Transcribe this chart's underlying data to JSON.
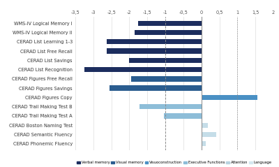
{
  "categories": [
    "WMS-IV Logical Memory I",
    "WMS-IV Logical Memory II",
    "CERAD List Learning 1-3",
    "CERAD List Free Recall",
    "CERAD List Savings",
    "CERAD List Recognition",
    "CERAD Figures Free Recall",
    "CERAD Figures Savings",
    "CERAD Figures Copy",
    "CERAD Trail Making Test B",
    "CERAD Trail Making Test A",
    "CERAD Boston Naming Test",
    "CERAD Semantic Fluency",
    "CERAD Phonemic Fluency"
  ],
  "values": [
    -1.75,
    -1.85,
    -2.62,
    -2.62,
    -2.0,
    -3.25,
    -1.95,
    -2.55,
    1.55,
    -1.72,
    -1.05,
    0.18,
    0.42,
    0.12
  ],
  "colors": [
    "#1c2d5e",
    "#1c2d5e",
    "#1c2d5e",
    "#1c2d5e",
    "#1c2d5e",
    "#1c2d5e",
    "#2a5c8f",
    "#2a5c8f",
    "#4a90c4",
    "#8dbdd8",
    "#8dbdd8",
    "#c5dde8",
    "#c5dde8",
    "#c5dde8"
  ],
  "xlim": [
    -3.5,
    2.0
  ],
  "xticks": [
    -3.5,
    -3.0,
    -2.5,
    -2.0,
    -1.5,
    -1.0,
    -0.5,
    0.0,
    0.5,
    1.0,
    1.5,
    2.0
  ],
  "xtick_labels": [
    "-3,5",
    "-3",
    "-2,5",
    "-2",
    "-1,5",
    "-1",
    "-0,5",
    "0",
    "0,5",
    "1",
    "1,5",
    "2"
  ],
  "vline_solid": 0.0,
  "vline_dashed": -1.0,
  "vline_dotted": 1.0,
  "legend_labels": [
    "Verbal memory",
    "Visual memory",
    "Visuoconstruction",
    "Executive Functions",
    "Attention",
    "Language"
  ],
  "legend_colors": [
    "#1c2d5e",
    "#2a5c8f",
    "#4a90c4",
    "#8dbdd8",
    "#b8d3e0",
    "#d5e8f0"
  ],
  "bar_height": 0.55,
  "bg_color": "#f7f7f7"
}
